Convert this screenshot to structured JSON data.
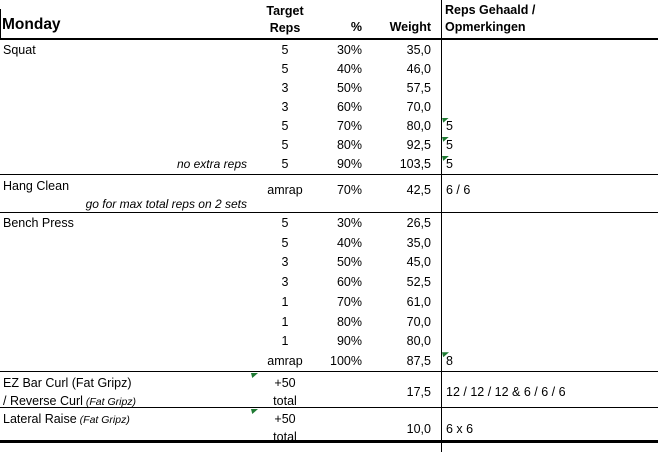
{
  "title_day": "Monday",
  "columns": {
    "target_l1": "Target",
    "target_l2": "Reps",
    "pct": "%",
    "weight": "Weight",
    "result_l1": "Reps Gehaald /",
    "result_l2": "Opmerkingen"
  },
  "squat": {
    "name": "Squat",
    "row_note": "no extra reps",
    "sets": [
      {
        "target": "5",
        "pct": "30%",
        "weight": "35,0",
        "result": ""
      },
      {
        "target": "5",
        "pct": "40%",
        "weight": "46,0",
        "result": ""
      },
      {
        "target": "3",
        "pct": "50%",
        "weight": "57,5",
        "result": ""
      },
      {
        "target": "3",
        "pct": "60%",
        "weight": "70,0",
        "result": ""
      },
      {
        "target": "5",
        "pct": "70%",
        "weight": "80,0",
        "result": "5"
      },
      {
        "target": "5",
        "pct": "80%",
        "weight": "92,5",
        "result": "5"
      },
      {
        "target": "5",
        "pct": "90%",
        "weight": "103,5",
        "result": "5"
      }
    ]
  },
  "hang": {
    "name": "Hang Clean",
    "note": "go for max total reps on 2 sets",
    "target": "amrap",
    "pct": "70%",
    "weight": "42,5",
    "result": "6 / 6"
  },
  "bench": {
    "name": "Bench Press",
    "sets": [
      {
        "target": "5",
        "pct": "30%",
        "weight": "26,5",
        "result": ""
      },
      {
        "target": "5",
        "pct": "40%",
        "weight": "35,0",
        "result": ""
      },
      {
        "target": "3",
        "pct": "50%",
        "weight": "45,0",
        "result": ""
      },
      {
        "target": "3",
        "pct": "60%",
        "weight": "52,5",
        "result": ""
      },
      {
        "target": "1",
        "pct": "70%",
        "weight": "61,0",
        "result": ""
      },
      {
        "target": "1",
        "pct": "80%",
        "weight": "70,0",
        "result": ""
      },
      {
        "target": "1",
        "pct": "90%",
        "weight": "80,0",
        "result": ""
      },
      {
        "target": "amrap",
        "pct": "100%",
        "weight": "87,5",
        "result": "8"
      }
    ]
  },
  "ez": {
    "name_l1": "EZ Bar Curl (Fat Gripz)",
    "name_l2_text": "/ Reverse Curl",
    "name_l2_italic": "(Fat Gripz)",
    "target_l1": "+50",
    "target_l2": "total",
    "weight": "17,5",
    "result": "12 / 12 / 12 & 6 / 6 / 6"
  },
  "lateral": {
    "name": "Lateral Raise",
    "name_italic": "(Fat Gripz)",
    "target_l1": "+50",
    "target_l2": "total",
    "weight": "10,0",
    "result": "6 x 6"
  },
  "colors": {
    "flag_green": "#1f7a33",
    "grid": "#000000"
  }
}
